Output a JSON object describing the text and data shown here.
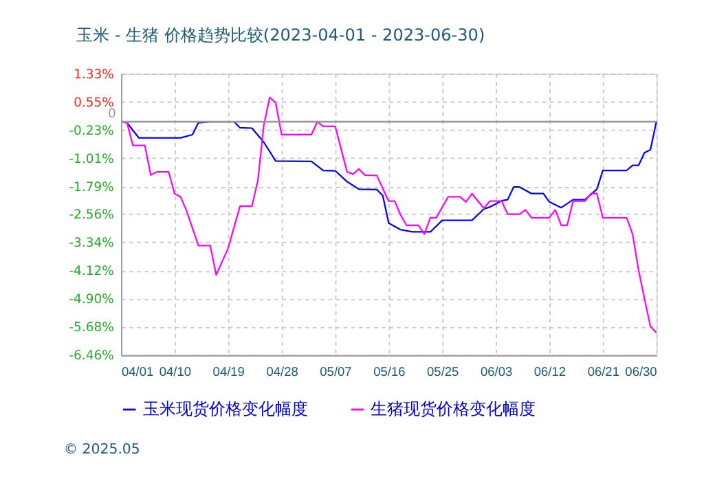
{
  "chart_data": {
    "type": "line",
    "title": "玉米 - 生猪 价格趋势比较(2023-04-01 - 2023-06-30)",
    "x": [
      "2023-04-01",
      "2023-04-02",
      "2023-04-04",
      "2023-04-11",
      "2023-04-13",
      "2023-04-14",
      "2023-04-16",
      "2023-04-20",
      "2023-04-21",
      "2023-04-23",
      "2023-04-25",
      "2023-04-27",
      "2023-05-03",
      "2023-05-05",
      "2023-05-07",
      "2023-05-09",
      "2023-05-11",
      "2023-05-14",
      "2023-05-15",
      "2023-05-16",
      "2023-05-18",
      "2023-05-20",
      "2023-05-23",
      "2023-05-25",
      "2023-05-30",
      "2023-06-01",
      "2023-06-02",
      "2023-06-04",
      "2023-06-05",
      "2023-06-06",
      "2023-06-07",
      "2023-06-09",
      "2023-06-11",
      "2023-06-12",
      "2023-06-14",
      "2023-06-16",
      "2023-06-18",
      "2023-06-20",
      "2023-06-21",
      "2023-06-25",
      "2023-06-26",
      "2023-06-27",
      "2023-06-28",
      "2023-06-29",
      "2023-06-30"
    ],
    "series": [
      {
        "name": "玉米现货价格变化幅度",
        "color": "#0000ff",
        "values": [
          0,
          -0.03,
          -0.45,
          -0.45,
          -0.36,
          -0.03,
          0,
          0,
          -0.17,
          -0.18,
          -0.57,
          -1.09,
          -1.1,
          -1.35,
          -1.36,
          -1.66,
          -1.87,
          -1.88,
          -2.05,
          -2.81,
          -2.99,
          -3.05,
          -3.05,
          -2.73,
          -2.73,
          -2.42,
          -2.36,
          -2.19,
          -2.16,
          -1.81,
          -1.81,
          -1.99,
          -1.99,
          -2.22,
          -2.38,
          -2.16,
          -2.16,
          -1.87,
          -1.35,
          -1.35,
          -1.21,
          -1.21,
          -0.86,
          -0.78,
          0
        ]
      },
      {
        "name": "生猪现货价格变化幅度",
        "color": "#ff00ff",
        "x": [
          "2023-04-01",
          "2023-04-02",
          "2023-04-03",
          "2023-04-05",
          "2023-04-06",
          "2023-04-07",
          "2023-04-09",
          "2023-04-10",
          "2023-04-11",
          "2023-04-12",
          "2023-04-14",
          "2023-04-16",
          "2023-04-17",
          "2023-04-19",
          "2023-04-21",
          "2023-04-23",
          "2023-04-24",
          "2023-04-25",
          "2023-04-26",
          "2023-04-27",
          "2023-04-28",
          "2023-05-03",
          "2023-05-04",
          "2023-05-05",
          "2023-05-07",
          "2023-05-09",
          "2023-05-10",
          "2023-05-11",
          "2023-05-12",
          "2023-05-14",
          "2023-05-15",
          "2023-05-16",
          "2023-05-17",
          "2023-05-18",
          "2023-05-19",
          "2023-05-21",
          "2023-05-22",
          "2023-05-23",
          "2023-05-24",
          "2023-05-26",
          "2023-05-28",
          "2023-05-29",
          "2023-05-30",
          "2023-06-01",
          "2023-06-02",
          "2023-06-04",
          "2023-06-05",
          "2023-06-07",
          "2023-06-08",
          "2023-06-09",
          "2023-06-12",
          "2023-06-13",
          "2023-06-14",
          "2023-06-15",
          "2023-06-16",
          "2023-06-18",
          "2023-06-19",
          "2023-06-20",
          "2023-06-21",
          "2023-06-25",
          "2023-06-26",
          "2023-06-27",
          "2023-06-28",
          "2023-06-29",
          "2023-06-30"
        ],
        "values": [
          0,
          -0.03,
          -0.66,
          -0.66,
          -1.48,
          -1.39,
          -1.39,
          -1.99,
          -2.08,
          -2.46,
          -3.43,
          -3.43,
          -4.24,
          -3.5,
          -2.34,
          -2.34,
          -1.63,
          -0.1,
          0.67,
          0.52,
          -0.36,
          -0.36,
          0,
          -0.13,
          -0.13,
          -1.39,
          -1.45,
          -1.31,
          -1.48,
          -1.49,
          -1.85,
          -2.2,
          -2.2,
          -2.58,
          -2.87,
          -2.87,
          -3.11,
          -2.66,
          -2.66,
          -2.08,
          -2.08,
          -2.22,
          -1.99,
          -2.4,
          -2.2,
          -2.2,
          -2.56,
          -2.56,
          -2.44,
          -2.66,
          -2.66,
          -2.44,
          -2.87,
          -2.87,
          -2.2,
          -2.2,
          -1.99,
          -1.99,
          -2.66,
          -2.66,
          -3.11,
          -4.1,
          -4.9,
          -5.66,
          -5.84
        ]
      }
    ],
    "xlim": [
      "2023-04-01",
      "2023-06-30"
    ],
    "xticks": [
      {
        "value": "2023-04-01",
        "label": "04/01"
      },
      {
        "value": "2023-04-10",
        "label": "04/10"
      },
      {
        "value": "2023-04-19",
        "label": "04/19"
      },
      {
        "value": "2023-04-28",
        "label": "04/28"
      },
      {
        "value": "2023-05-07",
        "label": "05/07"
      },
      {
        "value": "2023-05-16",
        "label": "05/16"
      },
      {
        "value": "2023-05-25",
        "label": "05/25"
      },
      {
        "value": "2023-06-03",
        "label": "06/03"
      },
      {
        "value": "2023-06-12",
        "label": "06/12"
      },
      {
        "value": "2023-06-21",
        "label": "06/21"
      },
      {
        "value": "2023-06-30",
        "label": "06/30"
      }
    ],
    "ylim": [
      -6.46,
      1.33
    ],
    "yticks": [
      {
        "value": 1.33,
        "label": "1.33%"
      },
      {
        "value": 0.55,
        "label": "0.55%"
      },
      {
        "value": -0.23,
        "label": "-0.23%"
      },
      {
        "value": -1.01,
        "label": "-1.01%"
      },
      {
        "value": -1.79,
        "label": "-1.79%"
      },
      {
        "value": -2.56,
        "label": "-2.56%"
      },
      {
        "value": -3.34,
        "label": "-3.34%"
      },
      {
        "value": -4.12,
        "label": "-4.12%"
      },
      {
        "value": -4.9,
        "label": "-4.90%"
      },
      {
        "value": -5.68,
        "label": "-5.68%"
      },
      {
        "value": -6.46,
        "label": "-6.46%"
      }
    ],
    "ref_lines": [
      {
        "axis": "y",
        "value": 0,
        "label": "0",
        "color": "#999999"
      }
    ],
    "grid": true,
    "legend": "bottom",
    "marker": "none",
    "line_style": "solid",
    "annotations": [
      "© 2025.05"
    ]
  }
}
